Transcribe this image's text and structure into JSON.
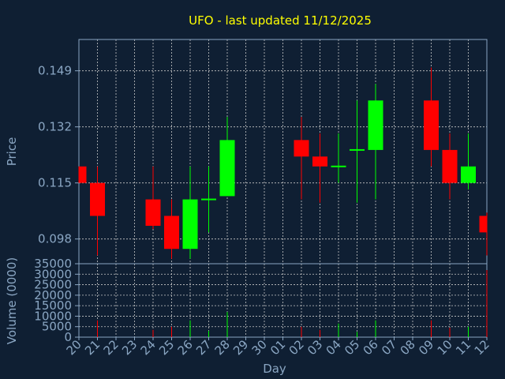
{
  "chart_data": {
    "type": "candlestick",
    "title": "UFO - last updated 11/12/2025",
    "xlabel": "Day",
    "price_panel": {
      "ylabel": "Price",
      "ylim": [
        0.0905,
        0.1585
      ],
      "yticks": [
        0.098,
        0.115,
        0.132,
        0.149
      ],
      "ytick_labels": [
        "0.098",
        "0.115",
        "0.132",
        "0.149"
      ],
      "grid": true
    },
    "volume_panel": {
      "ylabel": "Volume (0000)",
      "ylim": [
        0,
        35000
      ],
      "yticks": [
        0,
        5000,
        10000,
        15000,
        20000,
        25000,
        30000,
        35000
      ],
      "ytick_labels": [
        "0",
        "5000",
        "10000",
        "15000",
        "20000",
        "25000",
        "30000",
        "35000"
      ],
      "grid": true
    },
    "x_tick_labels": [
      "20",
      "21",
      "22",
      "23",
      "24",
      "25",
      "26",
      "27",
      "28",
      "29",
      "30",
      "01",
      "02",
      "03",
      "04",
      "05",
      "06",
      "07",
      "08",
      "09",
      "10",
      "11",
      "12"
    ],
    "colors": {
      "up": "#00ff00",
      "down": "#ff0000",
      "title": "#ffff00",
      "background": "#0f1f33",
      "axis": "#8aa6c3",
      "grid": "#c8c8c8"
    },
    "candles": [
      {
        "x": 20,
        "open": 0.12,
        "high": 0.12,
        "low": 0.115,
        "close": 0.115,
        "volume": 0
      },
      {
        "x": 21,
        "open": 0.115,
        "high": 0.12,
        "low": 0.093,
        "close": 0.105,
        "volume": 8000
      },
      {
        "x": 24,
        "open": 0.11,
        "high": 0.12,
        "low": 0.101,
        "close": 0.102,
        "volume": 3500
      },
      {
        "x": 25,
        "open": 0.105,
        "high": 0.11,
        "low": 0.092,
        "close": 0.095,
        "volume": 5000
      },
      {
        "x": 26,
        "open": 0.095,
        "high": 0.12,
        "low": 0.092,
        "close": 0.11,
        "volume": 8000
      },
      {
        "x": 27,
        "open": 0.11,
        "high": 0.12,
        "low": 0.1,
        "close": 0.11,
        "volume": 3000
      },
      {
        "x": 28,
        "open": 0.111,
        "high": 0.135,
        "low": 0.111,
        "close": 0.128,
        "volume": 12000
      },
      {
        "x": 32,
        "open": 0.128,
        "high": 0.135,
        "low": 0.11,
        "close": 0.123,
        "volume": 5000
      },
      {
        "x": 33,
        "open": 0.123,
        "high": 0.13,
        "low": 0.109,
        "close": 0.12,
        "volume": 3500
      },
      {
        "x": 34,
        "open": 0.12,
        "high": 0.13,
        "low": 0.115,
        "close": 0.12,
        "volume": 6500
      },
      {
        "x": 35,
        "open": 0.125,
        "high": 0.14,
        "low": 0.109,
        "close": 0.125,
        "volume": 2500
      },
      {
        "x": 36,
        "open": 0.125,
        "high": 0.145,
        "low": 0.11,
        "close": 0.14,
        "volume": 8000
      },
      {
        "x": 39,
        "open": 0.14,
        "high": 0.15,
        "low": 0.12,
        "close": 0.125,
        "volume": 8000
      },
      {
        "x": 40,
        "open": 0.125,
        "high": 0.13,
        "low": 0.11,
        "close": 0.115,
        "volume": 4500
      },
      {
        "x": 41,
        "open": 0.115,
        "high": 0.13,
        "low": 0.113,
        "close": 0.12,
        "volume": 5000
      },
      {
        "x": 42,
        "open": 0.105,
        "high": 0.106,
        "low": 0.093,
        "close": 0.1,
        "volume": 32000
      }
    ]
  }
}
